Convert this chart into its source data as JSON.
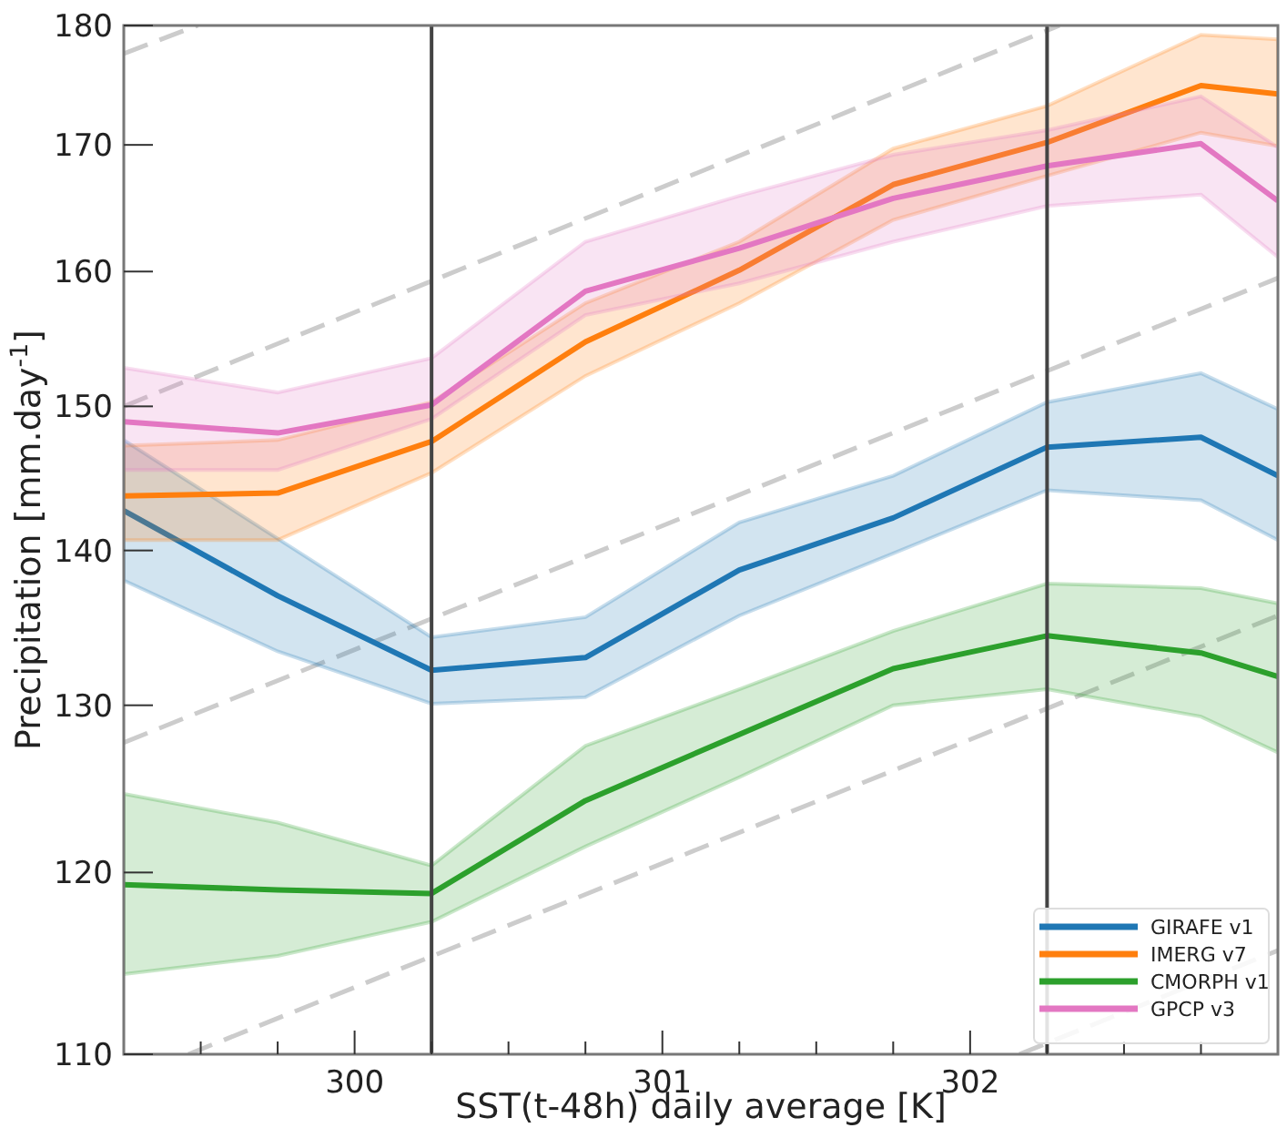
{
  "chart_data": {
    "type": "line",
    "xlabel": "SST(t-48h) daily average [K]",
    "ylabel": "Precipitation [mm.day$^{-1}$]",
    "x": [
      299.25,
      299.75,
      300.25,
      300.75,
      301.25,
      301.75,
      302.25,
      302.75,
      303.0
    ],
    "xlim": [
      299.25,
      303.0
    ],
    "xticks": [
      {
        "value": 299.5,
        "label": null
      },
      {
        "value": 299.75,
        "label": null
      },
      300,
      {
        "value": 300.25,
        "label": null
      },
      {
        "value": 300.5,
        "label": null
      },
      {
        "value": 300.75,
        "label": null
      },
      301,
      {
        "value": 301.25,
        "label": null
      },
      {
        "value": 301.5,
        "label": null
      },
      {
        "value": 301.75,
        "label": null
      },
      302,
      {
        "value": 302.25,
        "label": null
      },
      {
        "value": 302.5,
        "label": null
      },
      {
        "value": 302.75,
        "label": null
      }
    ],
    "ylim": [
      110,
      180
    ],
    "yticks": [
      110,
      120,
      130,
      140,
      150,
      160,
      170,
      180
    ],
    "log": true,
    "legend": "bottom right",
    "ref_lines": [
      {
        "axis": "x",
        "value": 300.25,
        "color": "#444444"
      },
      {
        "axis": "x",
        "value": 302.25,
        "color": "#444444"
      }
    ],
    "series": [
      {
        "color": "#cccccc",
        "line_style": "dashed",
        "x": [
          299.25,
          299.49
        ],
        "values": [
          177.6,
          180
        ]
      },
      {
        "color": "#cccccc",
        "line_style": "dashed",
        "x": [
          299.25,
          302.29
        ],
        "values": [
          150.0,
          180
        ]
      },
      {
        "color": "#cccccc",
        "line_style": "dashed",
        "x": [
          299.25,
          303.0
        ],
        "values": [
          127.7,
          159.5
        ]
      },
      {
        "color": "#cccccc",
        "line_style": "dashed",
        "x": [
          299.46,
          303.0
        ],
        "values": [
          110,
          135.7
        ]
      },
      {
        "color": "#cccccc",
        "line_style": "dashed",
        "x": [
          302.16,
          303.0
        ],
        "values": [
          110,
          115.6
        ]
      },
      {
        "name": "GIRAFE v1",
        "color": "#1f77b4",
        "values": [
          142.7,
          137.0,
          132.2,
          133.0,
          138.7,
          142.2,
          147.1,
          147.8,
          145.1
        ],
        "lower": [
          138.0,
          133.4,
          130.1,
          130.5,
          135.7,
          139.8,
          144.1,
          143.4,
          140.7
        ],
        "upper": [
          147.6,
          140.8,
          134.3,
          135.6,
          141.9,
          145.1,
          150.3,
          152.4,
          149.8
        ]
      },
      {
        "name": "IMERG v7",
        "color": "#ff7f0e",
        "values": [
          143.7,
          143.9,
          147.5,
          154.7,
          160.1,
          166.8,
          170.2,
          174.9,
          174.2
        ],
        "lower": [
          140.7,
          140.7,
          145.3,
          152.2,
          157.6,
          164.0,
          167.5,
          171.0,
          169.9
        ],
        "upper": [
          147.2,
          147.6,
          150.3,
          157.6,
          162.3,
          169.7,
          173.2,
          179.2,
          178.8
        ]
      },
      {
        "name": "CMORPH v1",
        "color": "#2ca02c",
        "values": [
          119.3,
          119.0,
          118.8,
          124.2,
          128.2,
          132.3,
          134.4,
          133.3,
          131.8
        ],
        "lower": [
          114.3,
          115.3,
          117.2,
          121.5,
          125.6,
          130.0,
          131.0,
          129.3,
          127.1
        ],
        "upper": [
          124.6,
          122.9,
          120.4,
          127.5,
          131.0,
          134.7,
          137.8,
          137.5,
          136.5
        ]
      },
      {
        "name": "GPCP v3",
        "color": "#e377c2",
        "values": [
          148.9,
          148.1,
          150.1,
          158.5,
          161.8,
          165.7,
          168.3,
          170.1,
          165.5
        ],
        "lower": [
          145.5,
          145.5,
          149.1,
          156.7,
          159.1,
          162.3,
          165.1,
          166.0,
          161.1
        ],
        "upper": [
          152.8,
          151.0,
          153.5,
          162.3,
          165.9,
          169.2,
          171.2,
          174.0,
          169.8
        ]
      }
    ]
  }
}
